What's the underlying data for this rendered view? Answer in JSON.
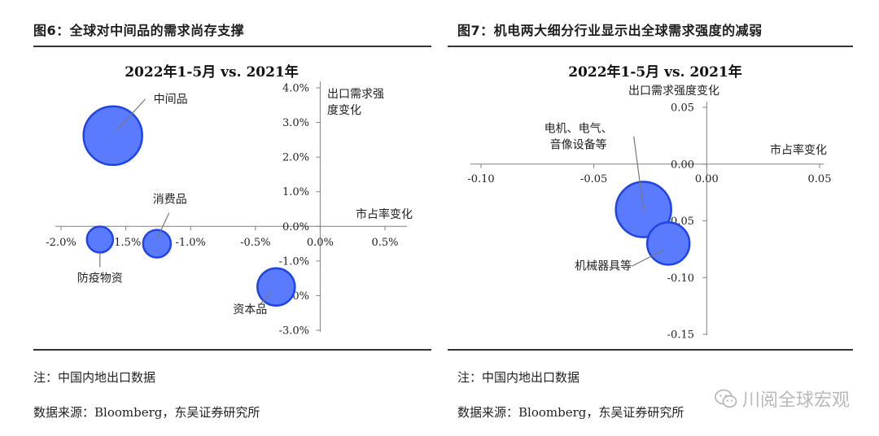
{
  "left": {
    "figure_title": "图6：全球对中间品的需求尚存支撑",
    "note": "注：中国内地出口数据",
    "source_prefix": "数据来源：",
    "source_main": "Bloomberg，东吴证券研究所"
  },
  "right": {
    "figure_title": "图7：机电两大细分行业显示出全球需求强度的减弱",
    "note": "注：中国内地出口数据",
    "source_prefix": "数据来源：",
    "source_main": "Bloomberg，东吴证券研究所"
  },
  "watermark": {
    "text": "川阅全球宏观",
    "icon": "wechat-icon"
  },
  "colors": {
    "bubble_fill": "#5b7bff",
    "bubble_stroke": "#1f44e6",
    "axis": "#808080"
  },
  "chart_data": [
    {
      "type": "bubble",
      "title": "2022年1-5月 vs. 2021年",
      "xlabel": "市占率变化",
      "ylabel": "出口需求强度变化",
      "xlim": [
        -2.0,
        0.5
      ],
      "ylim": [
        -3.0,
        4.0
      ],
      "x_ticks": [
        "-2.0%",
        "-1.5%",
        "-1.0%",
        "-0.5%",
        "0.0%",
        "0.5%"
      ],
      "y_ticks": [
        "4.0%",
        "3.0%",
        "2.0%",
        "1.0%",
        "0.0%",
        "-1.0%",
        "-2.0%",
        "-3.0%"
      ],
      "grid": false,
      "points": [
        {
          "label": "中间品",
          "x": -1.6,
          "y": 2.62,
          "size": 3.6
        },
        {
          "label": "消费品",
          "x": -1.26,
          "y": -0.5,
          "size": 1.7
        },
        {
          "label": "防疫物资",
          "x": -1.7,
          "y": -0.38,
          "size": 1.6
        },
        {
          "label": "资本品",
          "x": -0.34,
          "y": -1.75,
          "size": 2.3
        }
      ]
    },
    {
      "type": "bubble",
      "title": "2022年1-5月 vs. 2021年",
      "xlabel": "市占率变化",
      "ylabel": "出口需求强度变化",
      "xlim": [
        -0.1,
        0.05
      ],
      "ylim": [
        -0.15,
        0.05
      ],
      "x_ticks": [
        "-0.10",
        "-0.05",
        "0.00",
        "0.05"
      ],
      "y_ticks": [
        "0.05",
        "0.00",
        "-0.05",
        "-0.10",
        "-0.15"
      ],
      "grid": false,
      "points": [
        {
          "label": "电机、电气、音像设备等",
          "x": -0.028,
          "y": -0.04,
          "size": 3.4
        },
        {
          "label": "机械器具等",
          "x": -0.017,
          "y": -0.07,
          "size": 2.6
        }
      ]
    }
  ]
}
